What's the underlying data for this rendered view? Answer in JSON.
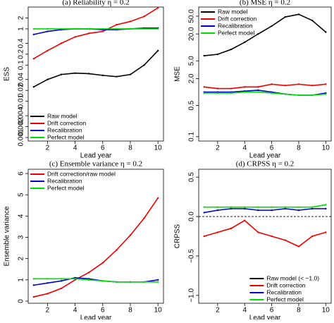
{
  "chart_data": [
    {
      "type": "line",
      "title": "(a) Reliability η = 0.2",
      "xlabel": "Lead year",
      "ylabel": "ESS",
      "x": [
        1,
        2,
        3,
        4,
        5,
        6,
        7,
        8,
        9,
        10
      ],
      "xlim": [
        0.6,
        10.4
      ],
      "xticks": [
        2,
        4,
        6,
        8,
        10
      ],
      "log_y": true,
      "ylim": [
        0.0008,
        4
      ],
      "yticks": [
        0.001,
        0.002,
        0.004,
        0.01,
        0.02,
        0.04,
        0.1,
        0.2,
        0.4,
        1,
        2
      ],
      "legend": "bottomleft",
      "series": [
        {
          "name": "Raw model",
          "color": "#000000",
          "values": [
            0.025,
            0.04,
            0.055,
            0.06,
            0.058,
            0.052,
            0.048,
            0.055,
            0.1,
            0.25
          ]
        },
        {
          "name": "Drift correction",
          "color": "#ee0000",
          "values": [
            0.15,
            0.25,
            0.4,
            0.6,
            0.75,
            0.85,
            1.3,
            1.6,
            2.2,
            3.8
          ]
        },
        {
          "name": "Recalibration",
          "color": "#0000cc",
          "values": [
            0.7,
            0.85,
            0.95,
            1.0,
            1.0,
            0.95,
            0.95,
            1.0,
            1.05,
            1.05
          ]
        },
        {
          "name": "Perfect model",
          "color": "#00dd00",
          "values": [
            1,
            1,
            1,
            1,
            1,
            1,
            1,
            1,
            1,
            1
          ]
        }
      ]
    },
    {
      "type": "line",
      "title": "(b) MSE η = 0.2",
      "xlabel": "Lead year",
      "ylabel": "MSE",
      "x": [
        1,
        2,
        3,
        4,
        5,
        6,
        7,
        8,
        9,
        10
      ],
      "xlim": [
        0.6,
        10.4
      ],
      "xticks": [
        2,
        4,
        6,
        8,
        10
      ],
      "log_y": true,
      "ylim": [
        0.08,
        80
      ],
      "yticks": [
        0.1,
        0.5,
        {
          "value": 2,
          "label": "2.0"
        },
        {
          "value": 5,
          "label": "5.0"
        },
        {
          "value": 20,
          "label": "20.0"
        },
        {
          "value": 50,
          "label": "50.0"
        }
      ],
      "legend": "topleft",
      "series": [
        {
          "name": "Raw model",
          "color": "#000000",
          "values": [
            6.5,
            7,
            9,
            13,
            20,
            30,
            48,
            55,
            40,
            22
          ]
        },
        {
          "name": "Drift correction",
          "color": "#ee0000",
          "values": [
            1.3,
            1.2,
            1.2,
            1.3,
            1.3,
            1.5,
            1.4,
            1.5,
            1.4,
            1.5
          ]
        },
        {
          "name": "Recalibration",
          "color": "#0000cc",
          "values": [
            1.0,
            1.0,
            1.0,
            1.05,
            1.1,
            1.0,
            0.9,
            0.85,
            0.85,
            0.95
          ]
        },
        {
          "name": "Perfect model",
          "color": "#00dd00",
          "values": [
            0.95,
            0.95,
            0.95,
            1.0,
            1.0,
            0.95,
            0.9,
            0.85,
            0.85,
            0.9
          ]
        }
      ]
    },
    {
      "type": "line",
      "title": "(c) Ensemble variance η = 0.2",
      "xlabel": "Lead year",
      "ylabel": "Ensemble variance",
      "x": [
        1,
        2,
        3,
        4,
        5,
        6,
        7,
        8,
        9,
        10
      ],
      "xlim": [
        0.6,
        10.4
      ],
      "xticks": [
        2,
        4,
        6,
        8,
        10
      ],
      "ylim": [
        -0.1,
        6.2
      ],
      "yticks": [
        0,
        1,
        2,
        3,
        4,
        5,
        6
      ],
      "legend": "topleft",
      "series": [
        {
          "name": "Drift correction/raw model",
          "color": "#ee0000",
          "values": [
            0.2,
            0.35,
            0.6,
            1.0,
            1.35,
            1.8,
            2.4,
            3.1,
            3.9,
            4.85
          ]
        },
        {
          "name": "Recalibration",
          "color": "#0000cc",
          "values": [
            0.75,
            0.85,
            0.95,
            1.1,
            1.05,
            0.95,
            0.9,
            0.9,
            0.9,
            1.0
          ]
        },
        {
          "name": "Perfect model",
          "color": "#00dd00",
          "values": [
            1.05,
            1.05,
            1.05,
            1.05,
            1.0,
            0.95,
            0.9,
            0.9,
            0.9,
            0.9
          ]
        }
      ]
    },
    {
      "type": "line",
      "title": "(d) CRPSS η = 0.2",
      "xlabel": "Lead year",
      "ylabel": "CRPSS",
      "x": [
        1,
        2,
        3,
        4,
        5,
        6,
        7,
        8,
        9,
        10
      ],
      "xlim": [
        0.6,
        10.4
      ],
      "xticks": [
        2,
        4,
        6,
        8,
        10
      ],
      "ylim": [
        -1.1,
        0.6
      ],
      "yticks": [
        {
          "value": -1,
          "label": "−1.0"
        },
        {
          "value": -0.5,
          "label": "−0.5"
        },
        {
          "value": 0,
          "label": "0.0"
        },
        0.5
      ],
      "reference_line": 0,
      "legend": "bottomright",
      "legend_only": [
        {
          "name": "Raw model (< −1.0)",
          "color": "#000000"
        }
      ],
      "series": [
        {
          "name": "Drift correction",
          "color": "#ee0000",
          "values": [
            -0.25,
            -0.2,
            -0.15,
            -0.05,
            -0.2,
            -0.25,
            -0.3,
            -0.38,
            -0.25,
            -0.2
          ]
        },
        {
          "name": "Recalibration",
          "color": "#0000cc",
          "values": [
            0.05,
            0.08,
            0.1,
            0.1,
            0.08,
            0.08,
            0.1,
            0.08,
            0.1,
            0.1
          ]
        },
        {
          "name": "Perfect model",
          "color": "#00dd00",
          "values": [
            0.12,
            0.12,
            0.12,
            0.12,
            0.12,
            0.12,
            0.12,
            0.12,
            0.12,
            0.15
          ]
        }
      ]
    }
  ]
}
